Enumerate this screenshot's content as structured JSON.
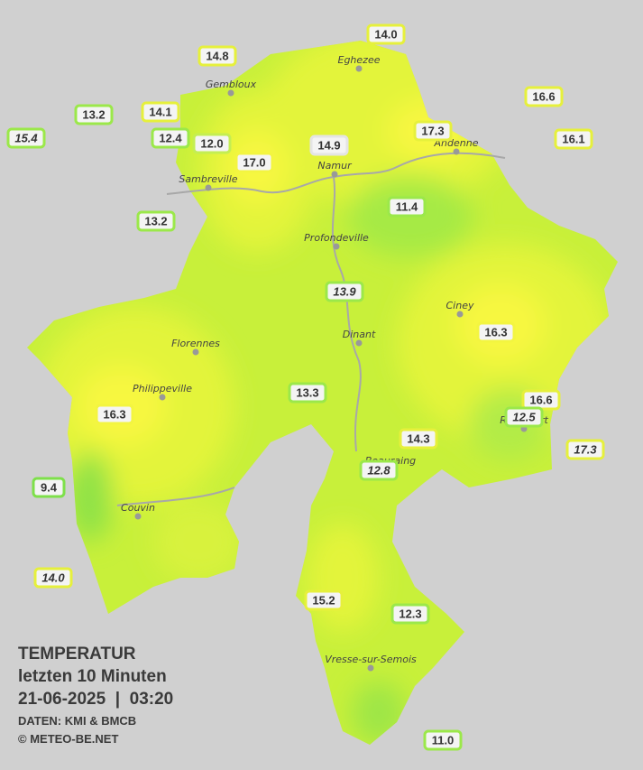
{
  "title": {
    "lines": [
      "TEMPERATUR",
      "letzten 10 Minuten",
      "21-06-2025  |  03:20"
    ],
    "credits": [
      "DATEN: KMI & BMCB",
      "© METEO-BE.NET"
    ]
  },
  "cities": [
    "Eghezee",
    "Gembloux",
    "Andenne",
    "Namur",
    "Sambreville",
    "Profondeville",
    "Ciney",
    "Dinant",
    "Florennes",
    "Philippeville",
    "Rochefort",
    "Beauraing",
    "Couvin",
    "Vresse-sur-Semois"
  ],
  "stations": [
    {
      "label": "14.0",
      "border": "#e6f03c",
      "italic": false
    },
    {
      "label": "14.8",
      "border": "#e6f03c",
      "italic": false
    },
    {
      "label": "16.6",
      "border": "#e6f03c",
      "italic": false
    },
    {
      "label": "13.2",
      "border": "#9be84a",
      "italic": false
    },
    {
      "label": "14.1",
      "border": "#e6f03c",
      "italic": false
    },
    {
      "label": "15.4",
      "border": "#9be84a",
      "italic": true
    },
    {
      "label": "12.4",
      "border": "#9be84a",
      "italic": false
    },
    {
      "label": "12.0",
      "border": "#c4ee52",
      "italic": false
    },
    {
      "label": "17.0",
      "border": "#f3f540",
      "italic": false
    },
    {
      "label": "14.9",
      "border": "#e4e4e4",
      "italic": false
    },
    {
      "label": "17.3",
      "border": "#e6f03c",
      "italic": false
    },
    {
      "label": "16.1",
      "border": "#e6f03c",
      "italic": false
    },
    {
      "label": "11.4",
      "border": "#9be84a",
      "italic": false
    },
    {
      "label": "13.2",
      "border": "#9be84a",
      "italic": false
    },
    {
      "label": "13.9",
      "border": "#9be84a",
      "italic": true
    },
    {
      "label": "16.3",
      "border": "#f3f540",
      "italic": false
    },
    {
      "label": "13.3",
      "border": "#9be84a",
      "italic": false
    },
    {
      "label": "16.3",
      "border": "#f3f540",
      "italic": false
    },
    {
      "label": "16.6",
      "border": "#e6f03c",
      "italic": false
    },
    {
      "label": "12.5",
      "border": "#9be84a",
      "italic": true
    },
    {
      "label": "17.3",
      "border": "#e6f03c",
      "italic": true
    },
    {
      "label": "14.3",
      "border": "#e6f03c",
      "italic": false
    },
    {
      "label": "12.8",
      "border": "#9be84a",
      "italic": true
    },
    {
      "label": "9.4",
      "border": "#7ee04a",
      "italic": false
    },
    {
      "label": "14.0",
      "border": "#e6f03c",
      "italic": true
    },
    {
      "label": "15.2",
      "border": "#e6f03c",
      "italic": false
    },
    {
      "label": "12.3",
      "border": "#9be84a",
      "italic": false
    },
    {
      "label": "11.0",
      "border": "#9be84a",
      "italic": false
    }
  ]
}
